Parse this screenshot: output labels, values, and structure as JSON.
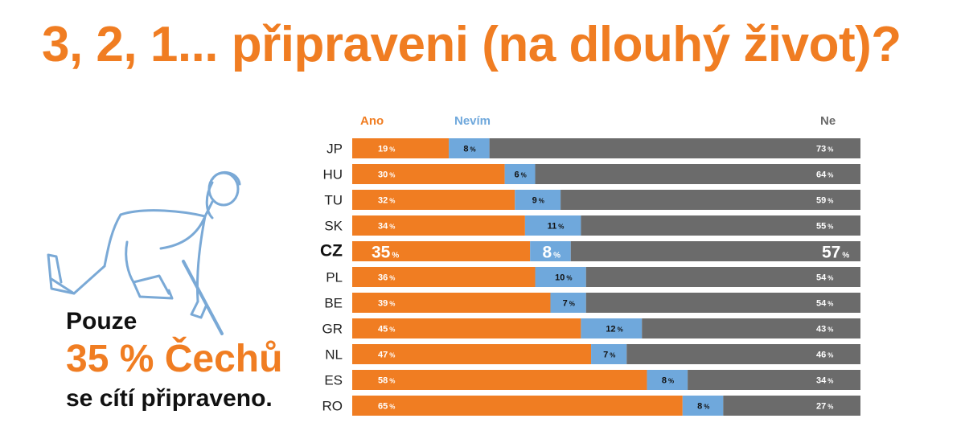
{
  "title": "3, 2, 1... připraveni (na dlouhý život)?",
  "callout": {
    "line1": "Pouze",
    "line2": "35 % Čechů",
    "line3": "se cítí připraveno."
  },
  "colors": {
    "accent": "#f07d22",
    "ano": "#f07d22",
    "nevim": "#6fa8dc",
    "ne": "#6b6b6b"
  },
  "chart_data": {
    "type": "bar",
    "orientation": "horizontal",
    "stacked": true,
    "unit": "%",
    "categories": [
      "JP",
      "HU",
      "TU",
      "SK",
      "CZ",
      "PL",
      "BE",
      "GR",
      "NL",
      "ES",
      "RO"
    ],
    "highlight": "CZ",
    "series": [
      {
        "name": "Ano",
        "color": "#f07d22",
        "values": [
          19,
          30,
          32,
          34,
          35,
          36,
          39,
          45,
          47,
          58,
          65
        ]
      },
      {
        "name": "Nevím",
        "color": "#6fa8dc",
        "values": [
          8,
          6,
          9,
          11,
          8,
          10,
          7,
          12,
          7,
          8,
          8
        ]
      },
      {
        "name": "Ne",
        "color": "#6b6b6b",
        "values": [
          73,
          64,
          59,
          55,
          57,
          54,
          54,
          43,
          46,
          34,
          27
        ]
      }
    ],
    "xlim": [
      0,
      100
    ],
    "legend": "top"
  }
}
